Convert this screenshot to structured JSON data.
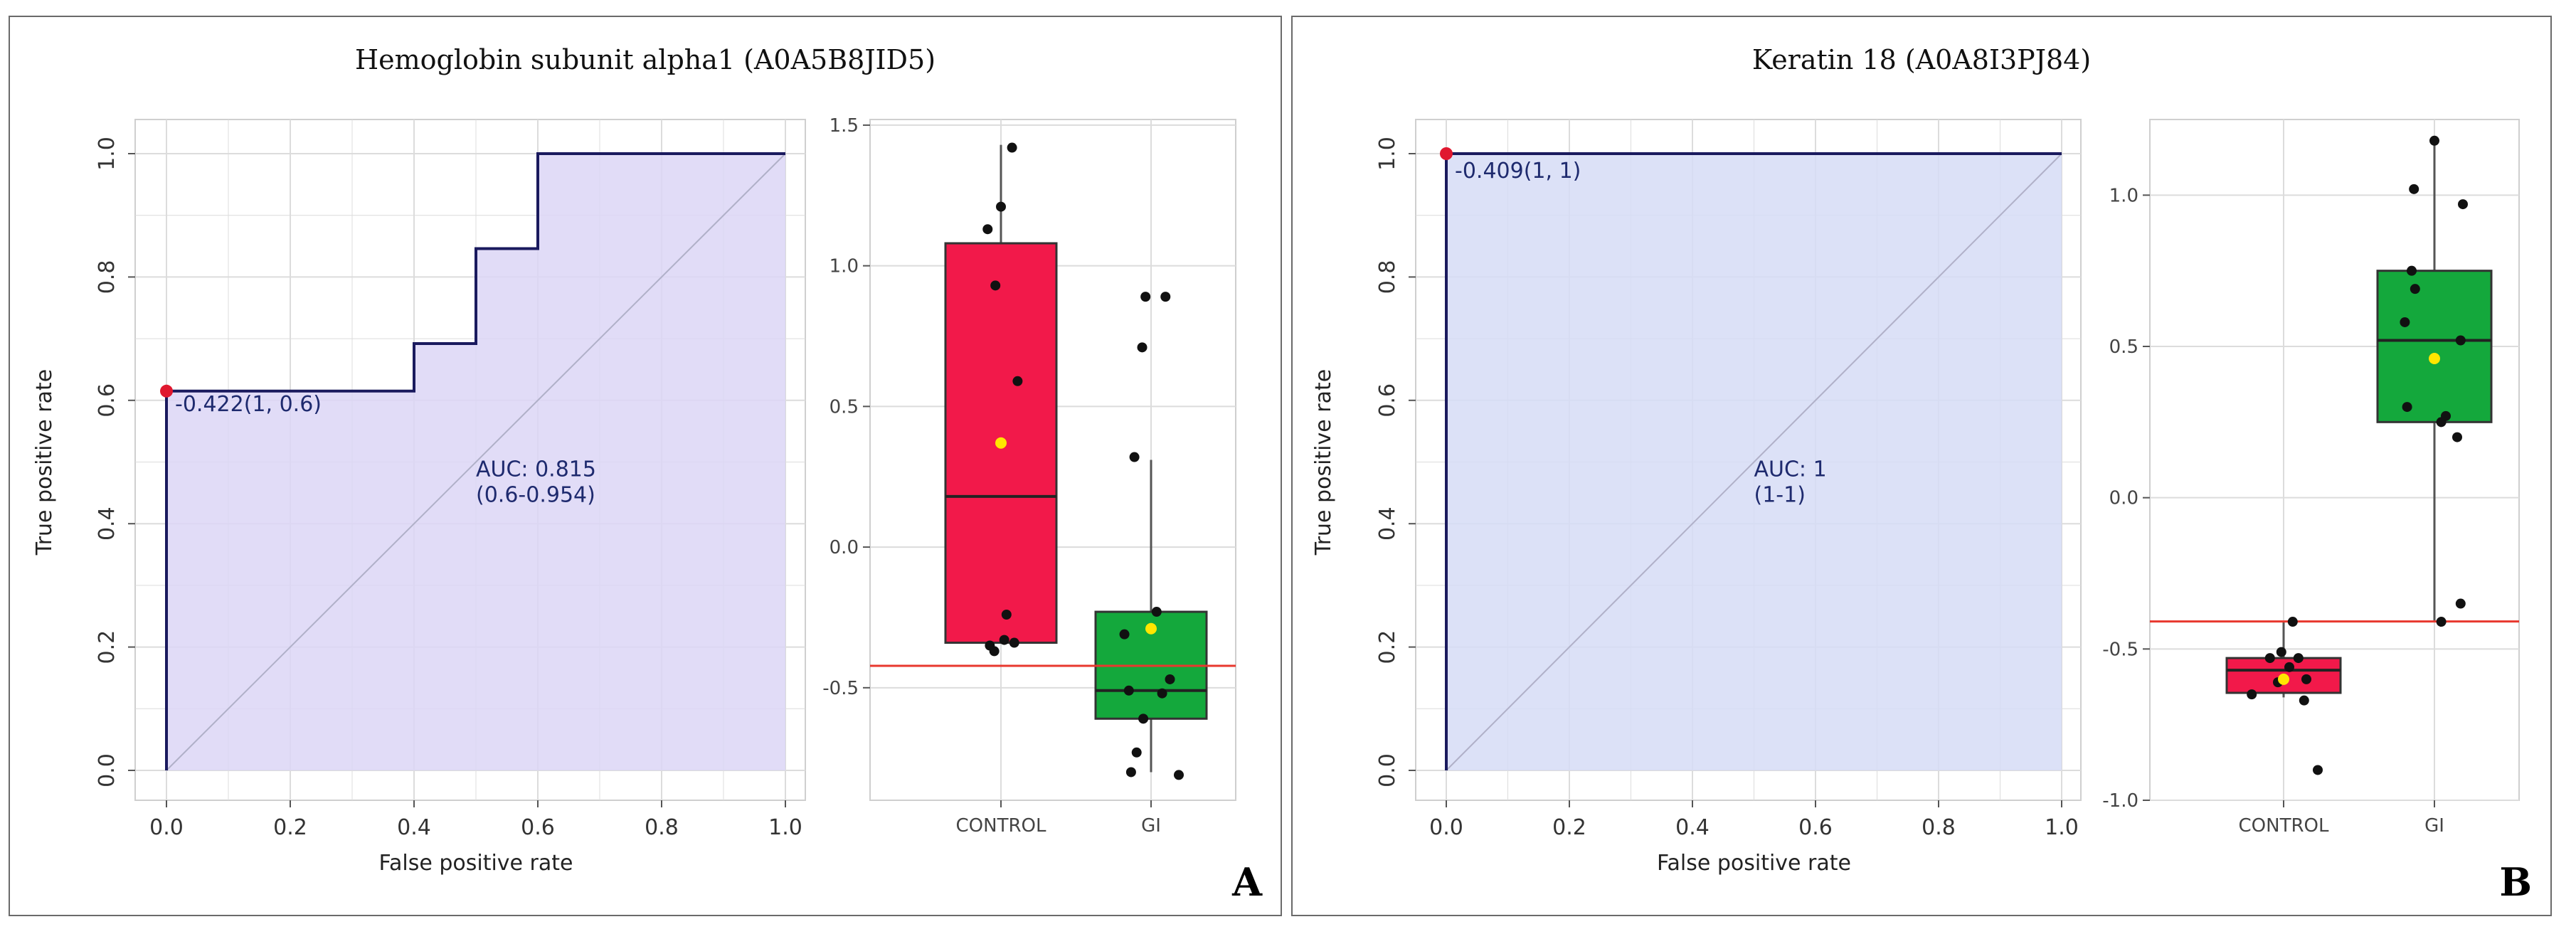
{
  "figure": {
    "panel_a": {
      "title": "Hemoglobin subunit alpha1 (A0A5B8JID5)",
      "letter": "A"
    },
    "panel_b": {
      "title": "Keratin 18 (A0A8I3PJ84)",
      "letter": "B"
    }
  },
  "colors": {
    "roc_fill_a": "#dcd6f6",
    "roc_fill_b": "#d6dcf6",
    "roc_line": "#1a1a5e",
    "diagonal": "#b0b0c8",
    "cutoff_point": "#e0182f",
    "control_box": "#f2194a",
    "gi_box": "#14a83c",
    "mean_marker": "#ffe600",
    "threshold_line": "#e8382e",
    "jitter": "#111111",
    "grid": "#dcdcdc"
  },
  "chart_data": [
    {
      "id": "roc-a",
      "type": "line",
      "title": "Hemoglobin subunit alpha1 (A0A5B8JID5)",
      "xlabel": "False positive rate",
      "ylabel": "True positive rate",
      "xlim": [
        0,
        1
      ],
      "ylim": [
        0,
        1
      ],
      "xticks": [
        "0.0",
        "0.2",
        "0.4",
        "0.6",
        "0.8",
        "1.0"
      ],
      "yticks": [
        "0.0",
        "0.2",
        "0.4",
        "0.6",
        "0.8",
        "1.0"
      ],
      "x": [
        0,
        0,
        0.4,
        0.4,
        0.5,
        0.5,
        0.6,
        0.6,
        1.0
      ],
      "y": [
        0,
        0.615,
        0.615,
        0.692,
        0.692,
        0.846,
        0.846,
        1.0,
        1.0
      ],
      "cutoff": {
        "x": 0,
        "y": 0.615,
        "label": "-0.422(1, 0.6)"
      },
      "auc_label": "AUC: 0.815",
      "ci_label": "(0.6-0.954)",
      "grid": true
    },
    {
      "id": "box-a",
      "type": "box",
      "categories": [
        "CONTROL",
        "GI"
      ],
      "ylim": [
        -0.9,
        1.52
      ],
      "yticks": [
        "-0.5",
        "0.0",
        "0.5",
        "1.0",
        "1.5"
      ],
      "ytick_values": [
        -0.5,
        0.0,
        0.5,
        1.0,
        1.5
      ],
      "threshold": -0.422,
      "boxes": [
        {
          "name": "CONTROL",
          "q1": -0.34,
          "median": 0.18,
          "q3": 1.08,
          "whisker_low": -0.34,
          "whisker_high": 1.43,
          "mean": 0.37,
          "points": [
            [
              -0.12,
              1.13
            ],
            [
              0.0,
              1.21
            ],
            [
              -0.05,
              0.93
            ],
            [
              0.1,
              1.42
            ],
            [
              0.15,
              0.59
            ],
            [
              0.05,
              -0.24
            ],
            [
              -0.1,
              -0.35
            ],
            [
              -0.06,
              -0.37
            ],
            [
              0.12,
              -0.34
            ],
            [
              0.03,
              -0.33
            ]
          ]
        },
        {
          "name": "GI",
          "q1": -0.61,
          "median": -0.51,
          "q3": -0.23,
          "whisker_low": -0.8,
          "whisker_high": 0.31,
          "mean": -0.29,
          "points": [
            [
              -0.05,
              0.89
            ],
            [
              0.13,
              0.89
            ],
            [
              -0.08,
              0.71
            ],
            [
              -0.15,
              0.32
            ],
            [
              0.05,
              -0.23
            ],
            [
              -0.24,
              -0.31
            ],
            [
              -0.2,
              -0.51
            ],
            [
              -0.07,
              -0.61
            ],
            [
              0.1,
              -0.52
            ],
            [
              0.17,
              -0.47
            ],
            [
              0.25,
              -0.81
            ],
            [
              -0.18,
              -0.8
            ],
            [
              -0.13,
              -0.73
            ]
          ]
        }
      ],
      "grid": true
    },
    {
      "id": "roc-b",
      "type": "line",
      "title": "Keratin 18 (A0A8I3PJ84)",
      "xlabel": "False positive rate",
      "ylabel": "True positive rate",
      "xlim": [
        0,
        1
      ],
      "ylim": [
        0,
        1
      ],
      "xticks": [
        "0.0",
        "0.2",
        "0.4",
        "0.6",
        "0.8",
        "1.0"
      ],
      "yticks": [
        "0.0",
        "0.2",
        "0.4",
        "0.6",
        "0.8",
        "1.0"
      ],
      "x": [
        0,
        0,
        1.0
      ],
      "y": [
        0,
        1.0,
        1.0
      ],
      "cutoff": {
        "x": 0,
        "y": 1.0,
        "label": "-0.409(1, 1)"
      },
      "auc_label": "AUC: 1",
      "ci_label": "(1-1)",
      "grid": true
    },
    {
      "id": "box-b",
      "type": "box",
      "categories": [
        "CONTROL",
        "GI"
      ],
      "ylim": [
        -1.0,
        1.25
      ],
      "yticks": [
        "-1.0",
        "-0.5",
        "0.0",
        "0.5",
        "1.0"
      ],
      "ytick_values": [
        -1.0,
        -0.5,
        0.0,
        0.5,
        1.0
      ],
      "threshold": -0.409,
      "boxes": [
        {
          "name": "CONTROL",
          "q1": -0.645,
          "median": -0.57,
          "q3": -0.53,
          "whisker_low": -0.66,
          "whisker_high": -0.41,
          "mean": -0.6,
          "points": [
            [
              -0.28,
              -0.65
            ],
            [
              -0.12,
              -0.53
            ],
            [
              -0.02,
              -0.51
            ],
            [
              0.08,
              -0.41
            ],
            [
              0.13,
              -0.53
            ],
            [
              0.18,
              -0.67
            ],
            [
              0.2,
              -0.6
            ],
            [
              0.05,
              -0.56
            ],
            [
              -0.05,
              -0.61
            ],
            [
              0.3,
              -0.9
            ]
          ]
        },
        {
          "name": "GI",
          "q1": 0.25,
          "median": 0.52,
          "q3": 0.75,
          "whisker_low": -0.41,
          "whisker_high": 1.18,
          "mean": 0.46,
          "points": [
            [
              0.0,
              1.18
            ],
            [
              -0.18,
              1.02
            ],
            [
              0.25,
              0.97
            ],
            [
              -0.2,
              0.75
            ],
            [
              -0.17,
              0.69
            ],
            [
              -0.26,
              0.58
            ],
            [
              0.23,
              0.52
            ],
            [
              -0.24,
              0.3
            ],
            [
              0.06,
              0.25
            ],
            [
              0.1,
              0.27
            ],
            [
              0.2,
              0.2
            ],
            [
              0.06,
              -0.41
            ],
            [
              0.23,
              -0.35
            ]
          ]
        }
      ],
      "grid": true
    }
  ]
}
